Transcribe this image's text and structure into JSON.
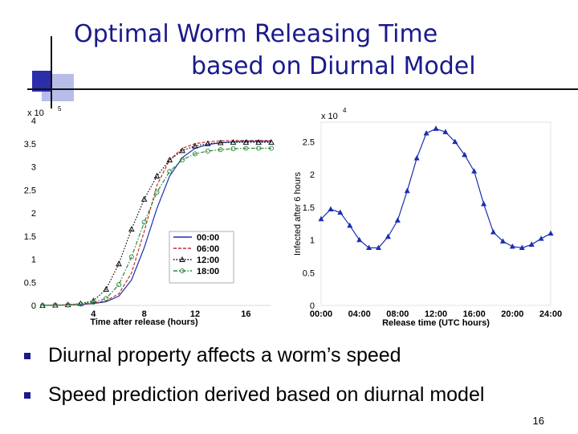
{
  "slide": {
    "title_line1": "Optimal Worm Releasing Time",
    "title_line2": "based on Diurnal Model",
    "bullets": [
      "Diurnal property affects a worm’s speed",
      "Speed prediction derived based on diurnal model"
    ],
    "page_number": "16",
    "accent_color": "#1a1a8c"
  },
  "chart_data": [
    {
      "type": "line",
      "title": "",
      "xlabel": "Time after release (hours)",
      "ylabel": "",
      "xlim": [
        0,
        18
      ],
      "ylim": [
        0,
        4
      ],
      "y_multiplier": "x 10",
      "y_multiplier_exp": "5",
      "x_ticks": [
        4,
        8,
        12,
        16
      ],
      "y_ticks": [
        0,
        0.5,
        1,
        1.5,
        2,
        2.5,
        3,
        3.5,
        4
      ],
      "series": [
        {
          "name": "00:00",
          "color": "#1a2fb0",
          "style": "solid",
          "marker": "none",
          "x": [
            0,
            1,
            2,
            3,
            4,
            5,
            6,
            7,
            8,
            9,
            10,
            11,
            12,
            13,
            14,
            15,
            16,
            17,
            18
          ],
          "y": [
            0,
            0.005,
            0.01,
            0.02,
            0.04,
            0.08,
            0.2,
            0.55,
            1.25,
            2.1,
            2.8,
            3.2,
            3.4,
            3.48,
            3.52,
            3.54,
            3.55,
            3.55,
            3.55
          ]
        },
        {
          "name": "06:00",
          "color": "#c03030",
          "style": "dashed",
          "marker": "none",
          "x": [
            0,
            1,
            2,
            3,
            4,
            5,
            6,
            7,
            8,
            9,
            10,
            11,
            12,
            13,
            14,
            15,
            16,
            17,
            18
          ],
          "y": [
            0,
            0.005,
            0.01,
            0.02,
            0.05,
            0.1,
            0.25,
            0.7,
            1.6,
            2.6,
            3.15,
            3.4,
            3.5,
            3.54,
            3.56,
            3.57,
            3.57,
            3.57,
            3.57
          ]
        },
        {
          "name": "12:00",
          "color": "#000000",
          "style": "dotted",
          "marker": "triangle",
          "x": [
            0,
            1,
            2,
            3,
            4,
            5,
            6,
            7,
            8,
            9,
            10,
            11,
            12,
            13,
            14,
            15,
            16,
            17,
            18
          ],
          "y": [
            0,
            0.005,
            0.015,
            0.04,
            0.1,
            0.35,
            0.9,
            1.65,
            2.3,
            2.8,
            3.15,
            3.35,
            3.45,
            3.5,
            3.52,
            3.53,
            3.53,
            3.53,
            3.53
          ]
        },
        {
          "name": "18:00",
          "color": "#2a8a3a",
          "style": "dashdot",
          "marker": "circle",
          "x": [
            0,
            1,
            2,
            3,
            4,
            5,
            6,
            7,
            8,
            9,
            10,
            11,
            12,
            13,
            14,
            15,
            16,
            17,
            18
          ],
          "y": [
            0,
            0.005,
            0.01,
            0.03,
            0.07,
            0.15,
            0.45,
            1.05,
            1.8,
            2.45,
            2.9,
            3.15,
            3.28,
            3.34,
            3.37,
            3.39,
            3.4,
            3.4,
            3.4
          ]
        }
      ]
    },
    {
      "type": "line",
      "title": "",
      "xlabel": "Release time (UTC hours)",
      "ylabel": "Infected after 6 hours",
      "xlim": [
        0,
        24
      ],
      "ylim": [
        0,
        2.8
      ],
      "y_multiplier": "x 10",
      "y_multiplier_exp": "4",
      "x_ticks": [
        "00:00",
        "04:00",
        "08:00",
        "12:00",
        "16:00",
        "20:00",
        "24:00"
      ],
      "y_ticks": [
        0,
        0.5,
        1,
        1.5,
        2,
        2.5
      ],
      "series": [
        {
          "name": "infected",
          "color": "#1a2fb0",
          "style": "solid",
          "marker": "triangle",
          "x": [
            0,
            1,
            2,
            3,
            4,
            5,
            6,
            7,
            8,
            9,
            10,
            11,
            12,
            13,
            14,
            15,
            16,
            17,
            18,
            19,
            20,
            21,
            22,
            23,
            24
          ],
          "y": [
            1.32,
            1.47,
            1.42,
            1.22,
            1.0,
            0.88,
            0.88,
            1.05,
            1.3,
            1.75,
            2.25,
            2.63,
            2.7,
            2.65,
            2.5,
            2.3,
            2.05,
            1.55,
            1.12,
            0.98,
            0.9,
            0.88,
            0.93,
            1.02,
            1.1
          ]
        }
      ]
    }
  ]
}
